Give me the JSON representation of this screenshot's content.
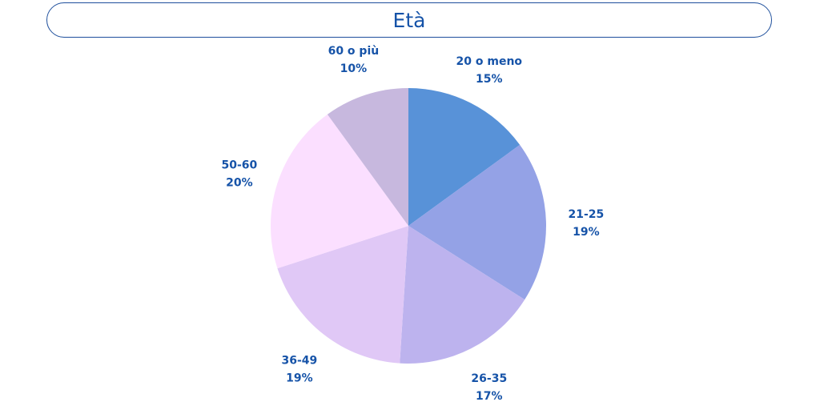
{
  "chart_data": {
    "type": "pie",
    "title": "Età",
    "categories": [
      "20 o meno",
      "21-25",
      "26-35",
      "36-49",
      "50-60",
      "60 o più"
    ],
    "values": [
      15,
      19,
      17,
      19,
      20,
      10
    ],
    "percent_labels": [
      "15%",
      "19%",
      "17%",
      "19%",
      "20%",
      "10%"
    ],
    "colors": [
      "#5892d8",
      "#94a2e6",
      "#bdb3ee",
      "#e0c8f6",
      "#fbdfff",
      "#c7b8de"
    ],
    "start_angle_deg": 0,
    "direction": "clockwise",
    "legend": "none"
  }
}
